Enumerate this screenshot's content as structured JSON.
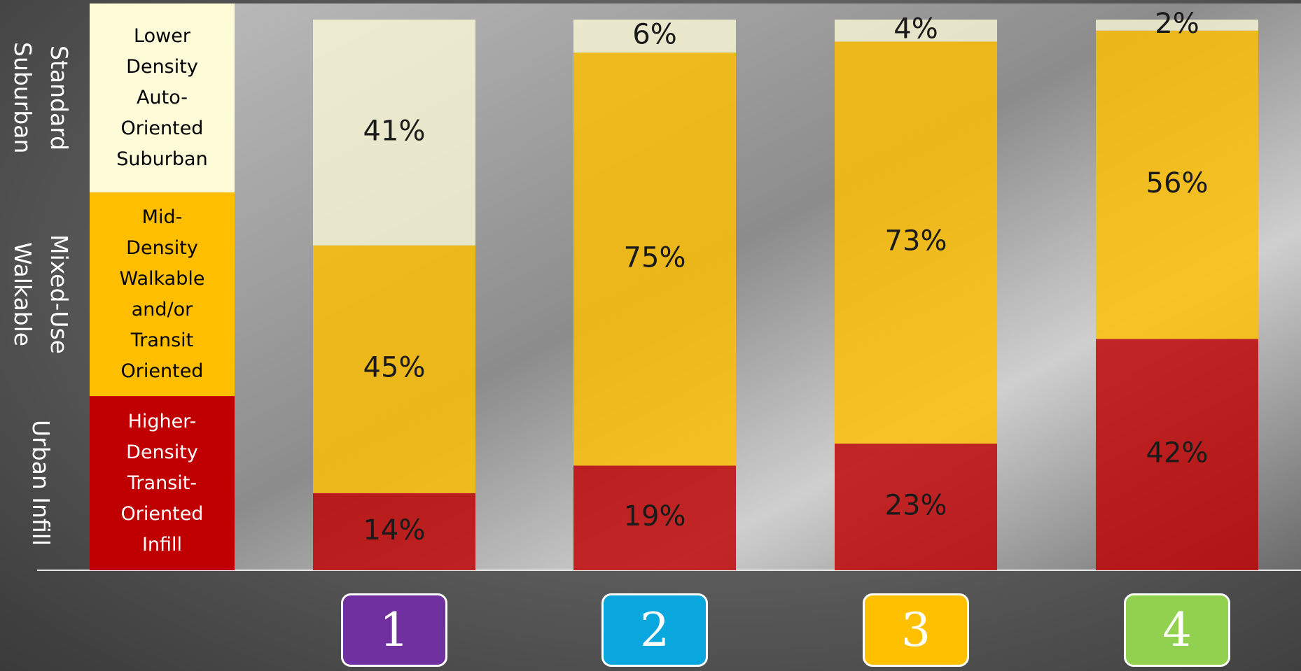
{
  "chart_data": {
    "type": "bar",
    "stacked": true,
    "categories": [
      "1",
      "2",
      "3",
      "4"
    ],
    "category_colors": [
      "#7030a0",
      "#0aa6de",
      "#ffc000",
      "#92d050"
    ],
    "series": [
      {
        "name": "Higher-Density Transit-Oriented Infill",
        "color": "#c00000",
        "values": [
          14,
          19,
          23,
          42
        ],
        "value_labels": [
          "14%",
          "19%",
          "23%",
          "42%"
        ]
      },
      {
        "name": "Mid-Density Walkable and/or Transit Oriented",
        "color": "#ffbf00",
        "values": [
          45,
          75,
          73,
          56
        ],
        "value_labels": [
          "45%",
          "75%",
          "73%",
          "56%"
        ]
      },
      {
        "name": "Lower Density Auto-Oriented Suburban",
        "color": "#fdfbd8",
        "values": [
          41,
          6,
          4,
          2
        ],
        "value_labels": [
          "41%",
          "6%",
          "4%",
          "2%"
        ]
      }
    ],
    "group_labels": [
      "Urban Infill",
      "Mixed-Use Walkable",
      "Standard Suburban"
    ],
    "ylim": [
      0,
      100
    ]
  }
}
